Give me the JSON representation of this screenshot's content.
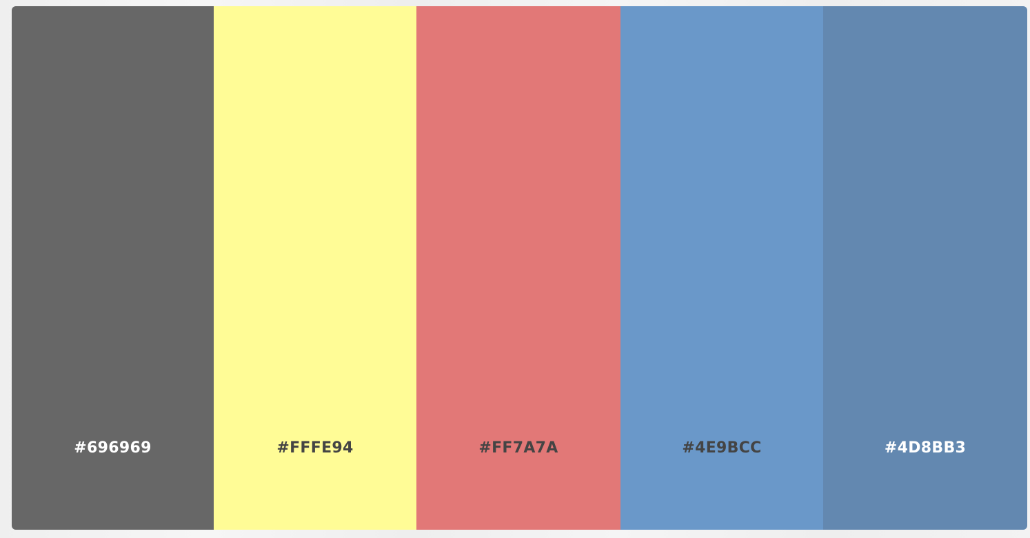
{
  "palette": {
    "swatches": [
      {
        "hex": "#696969",
        "label": "#696969",
        "display_color": "#676767",
        "text_color": "#ffffff"
      },
      {
        "hex": "#FFFE94",
        "label": "#FFFE94",
        "display_color": "#FFFC96",
        "text_color": "#444444"
      },
      {
        "hex": "#FF7A7A",
        "label": "#FF7A7A",
        "display_color": "#E27877",
        "text_color": "#444444"
      },
      {
        "hex": "#4E9BCC",
        "label": "#4E9BCC",
        "display_color": "#6A98C9",
        "text_color": "#444444"
      },
      {
        "hex": "#4D8BB3",
        "label": "#4D8BB3",
        "display_color": "#6388B0",
        "text_color": "#ffffff"
      }
    ]
  }
}
